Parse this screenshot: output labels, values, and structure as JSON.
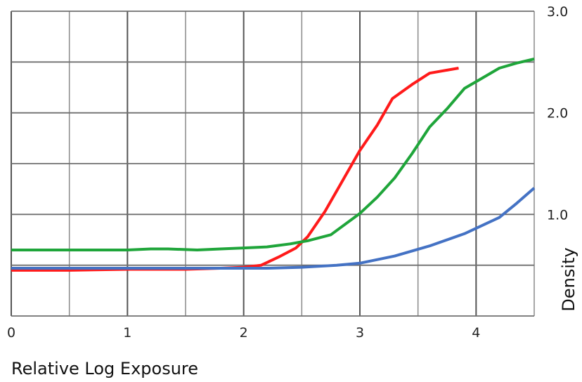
{
  "chart_data": {
    "type": "line",
    "xlabel": "Relative Log Exposure",
    "ylabel": "Density",
    "xlim": [
      0,
      4.5
    ],
    "ylim": [
      0,
      3.0
    ],
    "x_ticks": [
      "0",
      "1",
      "2",
      "3",
      "4"
    ],
    "y_ticks": [
      "1.0",
      "2.0",
      "3.0"
    ],
    "y_tick_values": [
      1.0,
      2.0,
      3.0
    ],
    "grid": true,
    "legend": "none",
    "series": [
      {
        "color": "#ff1a1a",
        "points": [
          [
            0,
            0.45
          ],
          [
            0.5,
            0.45
          ],
          [
            1.0,
            0.46
          ],
          [
            1.5,
            0.46
          ],
          [
            1.8,
            0.47
          ],
          [
            2.0,
            0.48
          ],
          [
            2.15,
            0.5
          ],
          [
            2.3,
            0.58
          ],
          [
            2.45,
            0.67
          ],
          [
            2.55,
            0.78
          ],
          [
            2.7,
            1.03
          ],
          [
            2.85,
            1.33
          ],
          [
            3.0,
            1.63
          ],
          [
            3.15,
            1.88
          ],
          [
            3.28,
            2.14
          ],
          [
            3.45,
            2.28
          ],
          [
            3.6,
            2.39
          ],
          [
            3.75,
            2.42
          ],
          [
            3.85,
            2.44
          ]
        ]
      },
      {
        "color": "#1fa53a",
        "points": [
          [
            0,
            0.65
          ],
          [
            0.5,
            0.65
          ],
          [
            1.0,
            0.65
          ],
          [
            1.2,
            0.66
          ],
          [
            1.35,
            0.66
          ],
          [
            1.6,
            0.65
          ],
          [
            1.8,
            0.66
          ],
          [
            2.0,
            0.67
          ],
          [
            2.2,
            0.68
          ],
          [
            2.4,
            0.71
          ],
          [
            2.55,
            0.74
          ],
          [
            2.75,
            0.8
          ],
          [
            3.0,
            1.01
          ],
          [
            3.15,
            1.17
          ],
          [
            3.3,
            1.36
          ],
          [
            3.45,
            1.6
          ],
          [
            3.6,
            1.86
          ],
          [
            3.75,
            2.04
          ],
          [
            3.9,
            2.24
          ],
          [
            4.05,
            2.34
          ],
          [
            4.2,
            2.44
          ],
          [
            4.35,
            2.49
          ],
          [
            4.5,
            2.53
          ]
        ]
      },
      {
        "color": "#4472c4",
        "points": [
          [
            0,
            0.47
          ],
          [
            0.5,
            0.47
          ],
          [
            1.0,
            0.47
          ],
          [
            1.5,
            0.47
          ],
          [
            2.0,
            0.47
          ],
          [
            2.2,
            0.47
          ],
          [
            2.5,
            0.48
          ],
          [
            2.8,
            0.5
          ],
          [
            3.0,
            0.52
          ],
          [
            3.3,
            0.59
          ],
          [
            3.6,
            0.69
          ],
          [
            3.9,
            0.81
          ],
          [
            4.2,
            0.97
          ],
          [
            4.35,
            1.11
          ],
          [
            4.5,
            1.26
          ]
        ]
      }
    ]
  }
}
